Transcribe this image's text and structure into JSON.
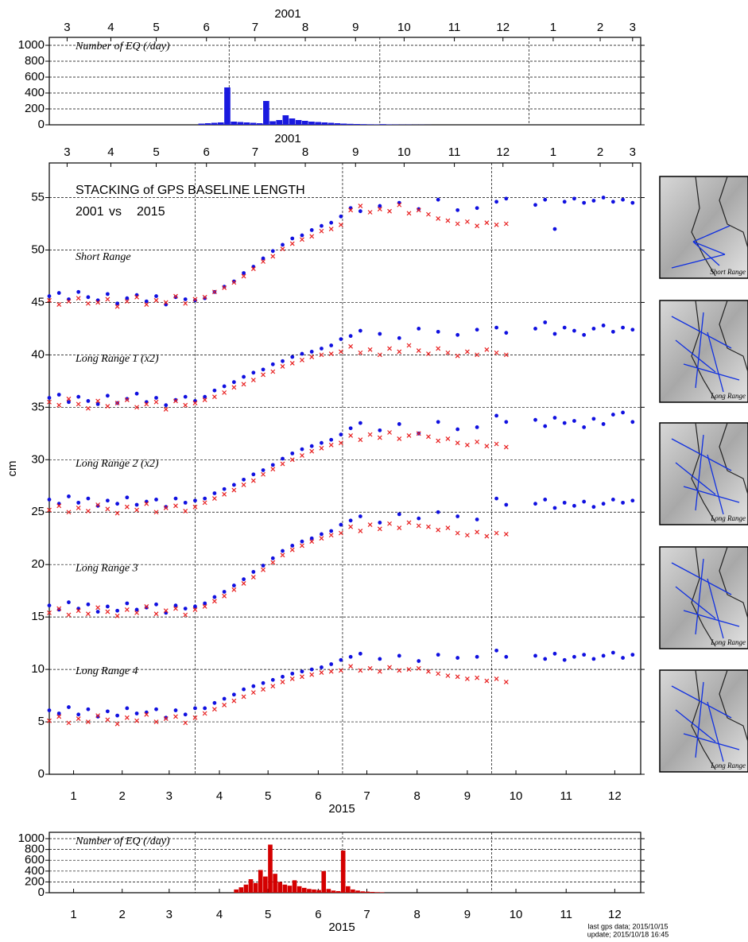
{
  "chart_data": [
    {
      "type": "histogram",
      "title": "Number of EQ (/day)",
      "x_label": "2001",
      "xtick_color": "#1010e0",
      "xlim": [
        0,
        365
      ],
      "xticks": [
        {
          "value": 11,
          "label": "3"
        },
        {
          "value": 38,
          "label": "4"
        },
        {
          "value": 66,
          "label": "5"
        },
        {
          "value": 97,
          "label": "6"
        },
        {
          "value": 127,
          "label": "7"
        },
        {
          "value": 158,
          "label": "8"
        },
        {
          "value": 189,
          "label": "9"
        },
        {
          "value": 219,
          "label": "10"
        },
        {
          "value": 250,
          "label": "11"
        },
        {
          "value": 280,
          "label": "12"
        },
        {
          "value": 311,
          "label": "1"
        },
        {
          "value": 340,
          "label": "2"
        },
        {
          "value": 360,
          "label": "3"
        }
      ],
      "ylim": [
        0,
        1000
      ],
      "yticks": [
        0,
        200,
        400,
        600,
        800,
        1000
      ],
      "grid": true,
      "vlines": [
        111,
        204,
        296
      ],
      "color": "#1a1adf",
      "bins": [
        92,
        96,
        100,
        104,
        108,
        112,
        116,
        120,
        124,
        128,
        132,
        136,
        140,
        144,
        148,
        152,
        156,
        160,
        164,
        168,
        172,
        176,
        180,
        184,
        188,
        192,
        196,
        200,
        204,
        208,
        212,
        216,
        220,
        224,
        228,
        232,
        236
      ],
      "values": [
        15,
        20,
        25,
        30,
        470,
        40,
        35,
        30,
        25,
        20,
        300,
        45,
        60,
        120,
        80,
        60,
        50,
        40,
        35,
        30,
        25,
        20,
        15,
        12,
        10,
        8,
        6,
        5,
        8,
        5,
        4,
        3,
        3,
        2,
        2,
        1
      ]
    },
    {
      "type": "scatter",
      "title": "STACKING of GPS BASELINE LENGTH",
      "legend_joiner": "vs",
      "y_label": "cm",
      "x_label": "2015",
      "x2_label": "2001",
      "xtick_color": "#e82020",
      "x2tick_color": "#1010e0",
      "xlim": [
        0,
        365
      ],
      "xticks": [
        {
          "value": 15,
          "label": "1"
        },
        {
          "value": 45,
          "label": "2"
        },
        {
          "value": 74,
          "label": "3"
        },
        {
          "value": 105,
          "label": "4"
        },
        {
          "value": 135,
          "label": "5"
        },
        {
          "value": 166,
          "label": "6"
        },
        {
          "value": 196,
          "label": "7"
        },
        {
          "value": 227,
          "label": "8"
        },
        {
          "value": 258,
          "label": "9"
        },
        {
          "value": 288,
          "label": "10"
        },
        {
          "value": 319,
          "label": "11"
        },
        {
          "value": 349,
          "label": "12"
        }
      ],
      "x2ticks": [
        {
          "value": 11,
          "label": "3"
        },
        {
          "value": 38,
          "label": "4"
        },
        {
          "value": 66,
          "label": "5"
        },
        {
          "value": 97,
          "label": "6"
        },
        {
          "value": 127,
          "label": "7"
        },
        {
          "value": 158,
          "label": "8"
        },
        {
          "value": 189,
          "label": "9"
        },
        {
          "value": 219,
          "label": "10"
        },
        {
          "value": 250,
          "label": "11"
        },
        {
          "value": 280,
          "label": "12"
        },
        {
          "value": 311,
          "label": "1"
        },
        {
          "value": 340,
          "label": "2"
        },
        {
          "value": 360,
          "label": "3"
        }
      ],
      "ylim": [
        0,
        58.3
      ],
      "yticks": [
        0,
        5,
        10,
        15,
        20,
        25,
        30,
        35,
        40,
        45,
        50,
        55
      ],
      "grid": true,
      "vlines": [
        90,
        181,
        273
      ],
      "panels": [
        "Short Range",
        "Long Range 1 (x2)",
        "Long Range 2 (x2)",
        "Long Range 3",
        "Long Range 4"
      ],
      "series": [
        {
          "name": "2001",
          "color": "#1010e0",
          "marker": "dot",
          "x": [
            0,
            6,
            12,
            18,
            24,
            30,
            36,
            42,
            48,
            54,
            60,
            66,
            72,
            78,
            84,
            90,
            96,
            102,
            108,
            114,
            120,
            126,
            132,
            138,
            144,
            150,
            156,
            162,
            168,
            174,
            180,
            186,
            192,
            204,
            216,
            228,
            240,
            252,
            264,
            276,
            282,
            300,
            306,
            312,
            318,
            324,
            330,
            336,
            342,
            348,
            354,
            360
          ],
          "values": [
            [
              45.6,
              45.9,
              45.3,
              46.0,
              45.5,
              45.2,
              45.8,
              44.9,
              45.4,
              45.7,
              45.1,
              45.6,
              44.8,
              45.5,
              45.3,
              45.2,
              45.4,
              46.0,
              46.5,
              47.0,
              47.8,
              48.4,
              49.2,
              49.9,
              50.5,
              51.1,
              51.4,
              51.9,
              52.3,
              52.6,
              53.2,
              54.0,
              53.7,
              54.2,
              54.5,
              53.9,
              54.8,
              53.8,
              54.0,
              54.6,
              54.9,
              54.3,
              54.8,
              52.0,
              54.6,
              54.9,
              54.5,
              54.7,
              55.0,
              54.6,
              54.8,
              54.5
            ],
            [
              35.9,
              36.2,
              35.5,
              36.0,
              35.6,
              35.3,
              36.1,
              35.4,
              35.8,
              36.3,
              35.5,
              35.9,
              35.2,
              35.7,
              36.0,
              35.6,
              36.0,
              36.6,
              37.0,
              37.4,
              37.9,
              38.3,
              38.6,
              39.1,
              39.4,
              39.8,
              40.1,
              40.3,
              40.6,
              40.9,
              41.5,
              41.8,
              42.3,
              42.0,
              41.6,
              42.5,
              42.2,
              41.9,
              42.4,
              42.6,
              42.1,
              42.5,
              43.1,
              42.0,
              42.6,
              42.3,
              41.9,
              42.5,
              42.8,
              42.2,
              42.6,
              42.4
            ],
            [
              26.2,
              25.8,
              26.5,
              25.9,
              26.3,
              25.6,
              26.1,
              25.8,
              26.4,
              25.7,
              26.0,
              26.2,
              25.5,
              26.3,
              25.9,
              26.1,
              26.3,
              26.8,
              27.2,
              27.6,
              28.1,
              28.6,
              29.0,
              29.5,
              30.1,
              30.6,
              31.0,
              31.3,
              31.6,
              31.9,
              32.4,
              33.0,
              33.5,
              32.8,
              33.4,
              32.5,
              33.6,
              32.9,
              33.1,
              34.2,
              33.6,
              33.8,
              33.2,
              34.0,
              33.5,
              33.7,
              33.1,
              33.9,
              33.4,
              34.3,
              34.5,
              33.6
            ],
            [
              16.1,
              15.7,
              16.4,
              15.8,
              16.2,
              15.5,
              16.0,
              15.6,
              16.3,
              15.7,
              15.9,
              16.2,
              15.4,
              16.1,
              15.8,
              16.0,
              16.3,
              16.9,
              17.4,
              18.0,
              18.6,
              19.3,
              19.9,
              20.6,
              21.3,
              21.8,
              22.2,
              22.5,
              22.9,
              23.2,
              23.8,
              24.2,
              24.6,
              24.0,
              24.8,
              24.4,
              25.0,
              24.6,
              24.3,
              26.3,
              25.7,
              25.8,
              26.2,
              25.4,
              25.9,
              25.6,
              26.0,
              25.5,
              25.8,
              26.2,
              25.9,
              26.1
            ],
            [
              6.1,
              5.8,
              6.4,
              5.7,
              6.2,
              5.5,
              6.0,
              5.6,
              6.3,
              5.8,
              5.9,
              6.2,
              5.4,
              6.1,
              5.7,
              6.3,
              6.3,
              6.8,
              7.2,
              7.6,
              8.1,
              8.4,
              8.7,
              9.0,
              9.3,
              9.6,
              9.8,
              10.0,
              10.2,
              10.5,
              10.9,
              11.2,
              11.5,
              11.0,
              11.3,
              10.8,
              11.4,
              11.1,
              11.2,
              11.8,
              11.2,
              11.3,
              11.0,
              11.5,
              10.9,
              11.2,
              11.4,
              11.0,
              11.3,
              11.6,
              11.1,
              11.4
            ]
          ]
        },
        {
          "name": "2015",
          "color": "#e82020",
          "marker": "cross",
          "x": [
            0,
            6,
            12,
            18,
            24,
            30,
            36,
            42,
            48,
            54,
            60,
            66,
            72,
            78,
            84,
            90,
            96,
            102,
            108,
            114,
            120,
            126,
            132,
            138,
            144,
            150,
            156,
            162,
            168,
            174,
            180,
            186,
            192,
            198,
            204,
            210,
            216,
            222,
            228,
            234,
            240,
            246,
            252,
            258,
            264,
            270,
            276,
            282
          ],
          "values": [
            [
              45.2,
              44.8,
              45.1,
              45.4,
              44.9,
              45.0,
              45.3,
              44.6,
              45.1,
              45.5,
              44.8,
              45.2,
              45.0,
              45.6,
              44.9,
              45.3,
              45.5,
              46.0,
              46.4,
              46.9,
              47.5,
              48.2,
              48.9,
              49.4,
              50.1,
              50.6,
              51.0,
              51.3,
              51.8,
              52.0,
              52.4,
              53.8,
              54.2,
              53.6,
              53.9,
              53.7,
              54.3,
              53.5,
              53.8,
              53.4,
              53.0,
              52.8,
              52.5,
              52.7,
              52.3,
              52.6,
              52.4,
              52.5
            ],
            [
              35.5,
              35.2,
              35.8,
              35.3,
              34.9,
              35.6,
              35.1,
              35.4,
              35.7,
              35.0,
              35.3,
              35.5,
              34.8,
              35.6,
              35.2,
              35.4,
              35.7,
              36.0,
              36.4,
              36.9,
              37.2,
              37.6,
              38.1,
              38.4,
              38.9,
              39.2,
              39.5,
              39.8,
              40.0,
              40.1,
              40.3,
              40.8,
              40.2,
              40.5,
              40.0,
              40.6,
              40.3,
              40.9,
              40.4,
              40.1,
              40.6,
              40.2,
              39.9,
              40.3,
              40.0,
              40.5,
              40.2,
              40.0
            ],
            [
              25.2,
              25.6,
              25.0,
              25.4,
              25.1,
              25.7,
              25.3,
              24.9,
              25.5,
              25.2,
              25.8,
              25.0,
              25.4,
              25.6,
              25.1,
              25.5,
              25.9,
              26.3,
              26.7,
              27.1,
              27.6,
              28.0,
              28.6,
              29.1,
              29.6,
              30.0,
              30.4,
              30.8,
              31.1,
              31.4,
              31.6,
              32.3,
              31.9,
              32.4,
              32.1,
              32.6,
              32.0,
              32.3,
              32.5,
              32.2,
              31.8,
              32.0,
              31.6,
              31.4,
              31.7,
              31.3,
              31.5,
              31.2
            ],
            [
              15.4,
              15.8,
              15.2,
              15.6,
              15.3,
              15.9,
              15.5,
              15.1,
              15.7,
              15.4,
              16.0,
              15.3,
              15.6,
              15.8,
              15.2,
              15.7,
              16.0,
              16.5,
              17.0,
              17.6,
              18.2,
              18.8,
              19.5,
              20.2,
              20.9,
              21.4,
              21.8,
              22.2,
              22.5,
              22.8,
              23.0,
              23.6,
              23.2,
              23.8,
              23.4,
              23.9,
              23.5,
              24.0,
              23.7,
              23.6,
              23.3,
              23.5,
              23.0,
              22.8,
              23.1,
              22.7,
              23.0,
              22.9
            ],
            [
              5.1,
              5.5,
              4.9,
              5.3,
              5.0,
              5.6,
              5.2,
              4.8,
              5.4,
              5.1,
              5.7,
              5.0,
              5.3,
              5.5,
              4.9,
              5.4,
              5.8,
              6.2,
              6.6,
              7.0,
              7.4,
              7.8,
              8.1,
              8.4,
              8.8,
              9.1,
              9.3,
              9.5,
              9.7,
              9.8,
              9.9,
              10.3,
              9.9,
              10.1,
              9.8,
              10.2,
              9.9,
              10.0,
              10.1,
              9.8,
              9.6,
              9.4,
              9.3,
              9.1,
              9.2,
              8.9,
              9.1,
              8.8
            ]
          ]
        }
      ]
    },
    {
      "type": "histogram",
      "title": "Number of EQ (/day)",
      "x_label": "2015",
      "xtick_color": "#e82020",
      "xlim": [
        0,
        365
      ],
      "xticks": [
        {
          "value": 15,
          "label": "1"
        },
        {
          "value": 45,
          "label": "2"
        },
        {
          "value": 74,
          "label": "3"
        },
        {
          "value": 105,
          "label": "4"
        },
        {
          "value": 135,
          "label": "5"
        },
        {
          "value": 166,
          "label": "6"
        },
        {
          "value": 196,
          "label": "7"
        },
        {
          "value": 227,
          "label": "8"
        },
        {
          "value": 258,
          "label": "9"
        },
        {
          "value": 288,
          "label": "10"
        },
        {
          "value": 319,
          "label": "11"
        },
        {
          "value": 349,
          "label": "12"
        }
      ],
      "ylim": [
        0,
        1000
      ],
      "yticks": [
        0,
        200,
        400,
        600,
        800,
        1000
      ],
      "grid": true,
      "vlines": [
        90,
        181,
        273
      ],
      "color": "#d40000",
      "bins": [
        114,
        117,
        120,
        123,
        126,
        129,
        132,
        135,
        138,
        141,
        144,
        147,
        150,
        153,
        156,
        159,
        162,
        165,
        168,
        171,
        174,
        177,
        180,
        183,
        186,
        189,
        192,
        195,
        198,
        201,
        204,
        207
      ],
      "values": [
        60,
        100,
        150,
        250,
        180,
        420,
        300,
        890,
        350,
        200,
        150,
        130,
        230,
        120,
        90,
        70,
        60,
        50,
        400,
        70,
        40,
        30,
        780,
        120,
        60,
        40,
        25,
        20,
        15,
        10,
        8
      ]
    }
  ],
  "maps": [
    "Short Range",
    "Long Range",
    "Long Range",
    "Long Range",
    "Long Range"
  ],
  "footer": [
    "last gps data; 2015/10/15",
    "update; 2015/10/18 16:45"
  ]
}
